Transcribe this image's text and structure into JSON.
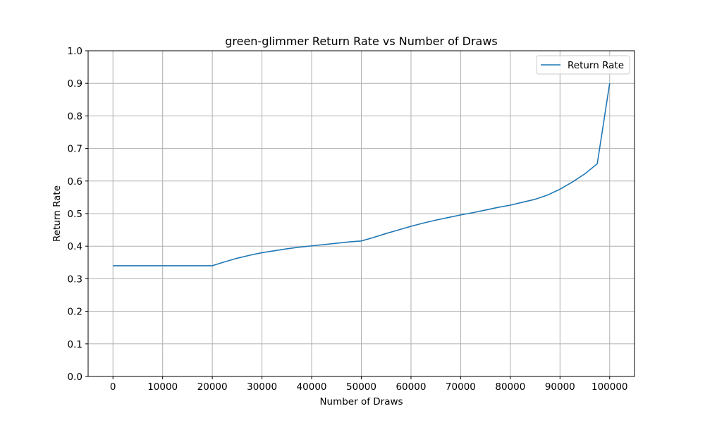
{
  "chart_data": {
    "type": "line",
    "title": "green-glimmer Return Rate vs Number of Draws",
    "xlabel": "Number of Draws",
    "ylabel": "Return Rate",
    "xlim": [
      -5000,
      105000
    ],
    "ylim": [
      0,
      1.0
    ],
    "xticks": [
      0,
      10000,
      20000,
      30000,
      40000,
      50000,
      60000,
      70000,
      80000,
      90000,
      100000
    ],
    "xtick_labels": [
      "0",
      "10000",
      "20000",
      "30000",
      "40000",
      "50000",
      "60000",
      "70000",
      "80000",
      "90000",
      "100000"
    ],
    "yticks": [
      0,
      0.1,
      0.2,
      0.3,
      0.4,
      0.5,
      0.6,
      0.7,
      0.8,
      0.9,
      1.0
    ],
    "ytick_labels": [
      "0.0",
      "0.1",
      "0.2",
      "0.3",
      "0.4",
      "0.5",
      "0.6",
      "0.7",
      "0.8",
      "0.9",
      "1.0"
    ],
    "grid": true,
    "legend_position": "top-right",
    "series": [
      {
        "name": "Return Rate",
        "color": "#1f77b4",
        "x": [
          0,
          5000,
          10000,
          15000,
          20000,
          22500,
          25000,
          27500,
          30000,
          32500,
          35000,
          37500,
          40000,
          42500,
          45000,
          47500,
          50000,
          52500,
          55000,
          57500,
          60000,
          62500,
          65000,
          67500,
          70000,
          72500,
          75000,
          77500,
          80000,
          82500,
          85000,
          87500,
          90000,
          92500,
          95000,
          97500,
          100000
        ],
        "y": [
          0.34,
          0.34,
          0.34,
          0.34,
          0.34,
          0.352,
          0.363,
          0.372,
          0.38,
          0.386,
          0.392,
          0.397,
          0.401,
          0.405,
          0.409,
          0.413,
          0.416,
          0.427,
          0.439,
          0.45,
          0.461,
          0.471,
          0.48,
          0.488,
          0.496,
          0.503,
          0.511,
          0.519,
          0.526,
          0.535,
          0.544,
          0.557,
          0.575,
          0.597,
          0.622,
          0.653,
          0.9
        ]
      }
    ]
  }
}
